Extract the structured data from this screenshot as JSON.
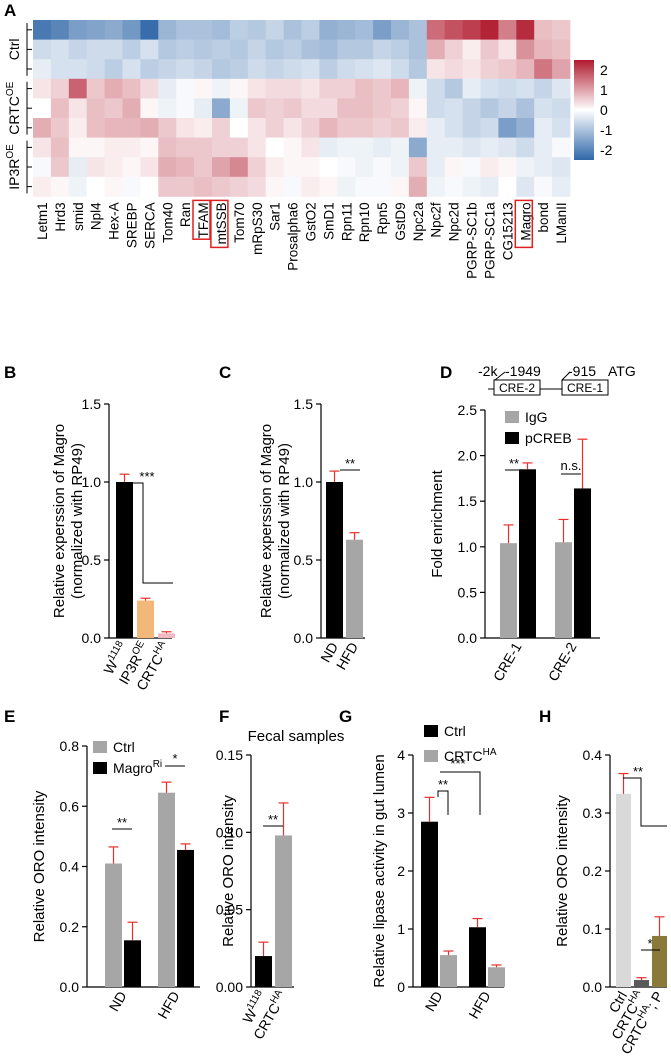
{
  "colors": {
    "black": "#000000",
    "gray": "#a6a6a6",
    "orange": "#f2b87a",
    "pink": "#f2b8c2",
    "olive": "#8a7a3a",
    "lightgray": "#d9d9d9",
    "error": "#e8302b",
    "heat_low": "#2f67a8",
    "heat_mid": "#ffffff",
    "heat_high": "#b01a2e"
  },
  "chart_data": [
    {
      "panel": "A",
      "type": "heatmap",
      "columns": [
        "Letm1",
        "Hrd3",
        "smid",
        "Npl4",
        "Hex-A",
        "SREBP",
        "SERCA",
        "Tom40",
        "Ran",
        "TFAM",
        "mtSSB",
        "Tom70",
        "mRpS30",
        "Sar1",
        "Prosalpha6",
        "GstO2",
        "SmD1",
        "Rpn11",
        "Rpn10",
        "Rpn5",
        "GstD9",
        "Npc2a",
        "Npc2f",
        "Npc2d",
        "PGRP-SC1b",
        "PGRP-SC1a",
        "CG15213",
        "Magro",
        "bond",
        "LManII"
      ],
      "boxed_columns": [
        "TFAM",
        "mtSSB",
        "Magro"
      ],
      "groups": [
        {
          "label": "Ctrl",
          "rows": 3
        },
        {
          "label": "CRTC",
          "sup": "OE",
          "rows": 3
        },
        {
          "label": "IP3R",
          "sup": "OE",
          "rows": 3
        }
      ],
      "values": [
        [
          -2.2,
          -2.0,
          -1.6,
          -1.5,
          -1.4,
          -1.7,
          -2.4,
          -1.2,
          -1.0,
          -1.0,
          -1.1,
          -0.8,
          -0.9,
          -0.7,
          -1.0,
          -0.8,
          -1.3,
          -1.2,
          -1.1,
          -1.6,
          -1.2,
          -1.0,
          1.6,
          1.9,
          2.1,
          2.4,
          1.4,
          2.3,
          0.7,
          0.6
        ],
        [
          -0.6,
          -0.5,
          -0.7,
          -0.6,
          -0.6,
          -0.8,
          -0.5,
          -0.9,
          -0.8,
          -0.9,
          -0.8,
          -0.9,
          -0.7,
          -0.9,
          -0.8,
          -1.0,
          -1.1,
          -0.9,
          -0.9,
          -0.7,
          -0.8,
          -1.0,
          0.9,
          0.5,
          0.2,
          0.6,
          0.3,
          1.2,
          0.8,
          0.7
        ],
        [
          -0.3,
          -0.5,
          -0.5,
          -0.6,
          -0.8,
          -0.5,
          -0.8,
          -0.7,
          -0.6,
          -0.7,
          -0.9,
          -0.8,
          -0.6,
          -0.7,
          -0.6,
          -0.5,
          -0.8,
          -0.6,
          -0.5,
          -0.4,
          -0.6,
          -0.9,
          0.3,
          0.4,
          0.3,
          0.5,
          0.6,
          0.8,
          1.5,
          1.0
        ],
        [
          0.3,
          0.5,
          1.7,
          0.6,
          0.9,
          0.7,
          0.4,
          -0.3,
          -0.1,
          0.1,
          -0.2,
          0.1,
          0.3,
          0.4,
          0.4,
          0.3,
          0.5,
          0.5,
          0.7,
          0.6,
          0.8,
          -0.2,
          -0.6,
          -0.9,
          -0.3,
          -0.5,
          -0.6,
          -0.5,
          -0.7,
          -0.4
        ],
        [
          0.0,
          0.7,
          0.3,
          0.7,
          0.6,
          0.9,
          0.1,
          -0.2,
          -0.1,
          -0.3,
          -1.4,
          -0.2,
          0.6,
          0.5,
          0.6,
          0.4,
          0.4,
          0.7,
          0.7,
          0.6,
          0.5,
          0.1,
          -0.6,
          -0.5,
          -0.7,
          -0.9,
          -0.7,
          -1.0,
          -0.5,
          -0.6
        ],
        [
          0.9,
          0.6,
          0.2,
          0.7,
          0.8,
          0.8,
          0.9,
          0.6,
          0.3,
          0.2,
          0.5,
          0.0,
          0.3,
          0.5,
          0.3,
          0.5,
          0.8,
          0.6,
          0.6,
          0.5,
          0.6,
          0.2,
          -0.3,
          -0.5,
          -0.7,
          -0.6,
          -1.6,
          -1.3,
          -0.3,
          -0.5
        ],
        [
          0.3,
          0.7,
          0.1,
          0.1,
          0.2,
          0.2,
          0.1,
          0.7,
          0.6,
          0.6,
          0.5,
          0.5,
          0.3,
          0.0,
          0.1,
          0.3,
          -0.3,
          -0.2,
          -0.2,
          -0.3,
          -0.2,
          -1.4,
          -0.3,
          -0.3,
          -0.4,
          -0.3,
          -0.4,
          -0.6,
          -0.3,
          -0.1
        ],
        [
          -0.1,
          0.6,
          -0.3,
          0.3,
          0.2,
          0.1,
          0.3,
          0.9,
          0.8,
          0.6,
          1.0,
          1.3,
          0.5,
          0.2,
          0.1,
          0.1,
          0.0,
          -0.1,
          -0.2,
          -0.1,
          -0.2,
          0.6,
          -0.3,
          0.1,
          -0.1,
          0.2,
          0.1,
          -0.2,
          -0.3,
          -0.4
        ],
        [
          0.2,
          0.1,
          -0.2,
          0.0,
          0.1,
          -0.1,
          0.0,
          0.6,
          0.6,
          0.7,
          0.6,
          0.5,
          0.4,
          0.1,
          -0.1,
          0.2,
          0.1,
          -0.2,
          -0.1,
          -0.1,
          0.1,
          0.9,
          -0.2,
          -0.1,
          -0.2,
          -0.3,
          0.0,
          -0.4,
          -0.1,
          -0.3
        ]
      ],
      "colorbar_ticks": [
        "2",
        "1",
        "0",
        "-1",
        "-2"
      ],
      "vmin": -2.5,
      "vmax": 2.5
    },
    {
      "panel": "B",
      "type": "bar",
      "ylabel": [
        "Relative experssion of Magro",
        "(normalized with RP49)"
      ],
      "ylim": [
        0,
        1.5
      ],
      "yticks": [
        "0.0",
        "0.5",
        "1.0",
        "1.5"
      ],
      "categories": [
        {
          "base": "W",
          "sup": "1118"
        },
        {
          "base": "IP3R",
          "sup": "OE"
        },
        {
          "base": "CRTC",
          "sup": "HA"
        }
      ],
      "values": [
        1.0,
        0.24,
        0.03
      ],
      "errors": [
        0.05,
        0.015,
        0.01
      ],
      "bar_colors": [
        "#000000",
        "#f2b87a",
        "#f2b8c2"
      ],
      "sig": [
        "***"
      ]
    },
    {
      "panel": "C",
      "type": "bar",
      "ylabel": [
        "Relative experssion of Magro",
        "(normalized with RP49)"
      ],
      "ylim": [
        0,
        1.5
      ],
      "yticks": [
        "0.0",
        "0.5",
        "1.0",
        "1.5"
      ],
      "categories": [
        "ND",
        "HFD"
      ],
      "values": [
        1.0,
        0.63
      ],
      "errors": [
        0.07,
        0.045
      ],
      "bar_colors": [
        "#000000",
        "#a6a6a6"
      ],
      "sig": [
        "**"
      ]
    },
    {
      "panel": "D",
      "type": "bar",
      "diagram": {
        "labels": [
          "-2k",
          "-1949",
          "-915",
          "ATG"
        ],
        "boxes": [
          "CRE-2",
          "CRE-1"
        ]
      },
      "ylabel": "Fold enrichment",
      "ylim": [
        0,
        2.5
      ],
      "yticks": [
        "0.0",
        "0.5",
        "1.0",
        "1.5",
        "2.0",
        "2.5"
      ],
      "categories": [
        "CRE-1",
        "CRE-2"
      ],
      "series": [
        {
          "name": "IgG",
          "values": [
            1.04,
            1.05
          ],
          "errors": [
            0.2,
            0.25
          ],
          "color": "#a6a6a6"
        },
        {
          "name": "pCREB",
          "values": [
            1.85,
            1.64
          ],
          "errors": [
            0.07,
            0.54
          ],
          "color": "#000000"
        }
      ],
      "sig": [
        "**",
        "n.s."
      ]
    },
    {
      "panel": "E",
      "type": "bar",
      "ylabel": "Relative ORO intensity",
      "ylim": [
        0,
        0.8
      ],
      "yticks": [
        "0.0",
        "0.2",
        "0.4",
        "0.6",
        "0.8"
      ],
      "categories": [
        "ND",
        "HFD"
      ],
      "series": [
        {
          "name": "Ctrl",
          "values": [
            0.41,
            0.645
          ],
          "errors": [
            0.055,
            0.035
          ],
          "color": "#a6a6a6"
        },
        {
          "name": "Magro",
          "sup": "Ri",
          "values": [
            0.155,
            0.455
          ],
          "errors": [
            0.06,
            0.02
          ],
          "color": "#000000"
        }
      ],
      "sig": [
        "**",
        "*"
      ]
    },
    {
      "panel": "F",
      "type": "bar",
      "title": "Fecal samples",
      "ylabel": "Relative ORO intensity",
      "ylim": [
        0,
        0.15
      ],
      "yticks": [
        "0.00",
        "0.05",
        "0.10",
        "0.15"
      ],
      "categories": [
        {
          "base": "W",
          "sup": "1118"
        },
        {
          "base": "CRTC",
          "sup": "HA"
        }
      ],
      "values": [
        0.02,
        0.098
      ],
      "errors": [
        0.009,
        0.021
      ],
      "bar_colors": [
        "#000000",
        "#a6a6a6"
      ],
      "sig": [
        "**"
      ]
    },
    {
      "panel": "G",
      "type": "bar",
      "ylabel": "Relative lipase activity in gut lumen",
      "ylim": [
        0,
        4
      ],
      "yticks": [
        "0",
        "1",
        "2",
        "3",
        "4"
      ],
      "categories": [
        "ND",
        "HFD"
      ],
      "series": [
        {
          "name": "Ctrl",
          "values": [
            2.85,
            1.03
          ],
          "errors": [
            0.42,
            0.15
          ],
          "color": "#000000"
        },
        {
          "name": "CRTC",
          "sup": "HA",
          "values": [
            0.55,
            0.34
          ],
          "errors": [
            0.07,
            0.04
          ],
          "color": "#a6a6a6"
        }
      ],
      "sig": [
        "**",
        "***"
      ]
    },
    {
      "panel": "H",
      "type": "bar",
      "ylabel": "Relative ORO intensity",
      "ylim": [
        0,
        0.4
      ],
      "yticks": [
        "0.0",
        "0.1",
        "0.2",
        "0.3",
        "0.4"
      ],
      "categories": [
        {
          "base": "Ctrl",
          "sup": ""
        },
        {
          "base": "CRTC",
          "sup": "HA"
        },
        {
          "base": "CRTC",
          "sup": "HA",
          "tail": "; P"
        }
      ],
      "values": [
        0.333,
        0.012,
        0.088
      ],
      "errors": [
        0.035,
        0.004,
        0.033
      ],
      "bar_colors": [
        "#d9d9d9",
        "#595959",
        "#8a7a3a"
      ],
      "sig": [
        "**",
        "*"
      ]
    }
  ]
}
